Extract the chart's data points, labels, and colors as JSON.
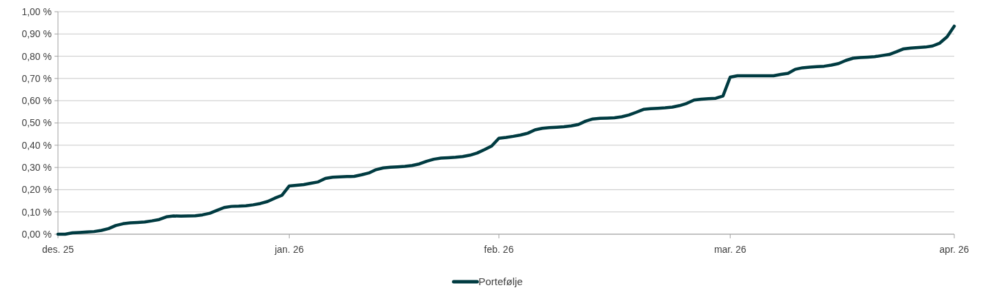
{
  "chart_data": {
    "type": "line",
    "categories": [
      "des. 25",
      null,
      null,
      null,
      null,
      null,
      null,
      null,
      null,
      null,
      null,
      null,
      null,
      null,
      null,
      null,
      null,
      null,
      null,
      null,
      null,
      null,
      null,
      null,
      null,
      null,
      null,
      null,
      null,
      null,
      null,
      null,
      "jan. 26",
      null,
      null,
      null,
      null,
      null,
      null,
      null,
      null,
      null,
      null,
      null,
      null,
      null,
      null,
      null,
      null,
      null,
      null,
      null,
      null,
      null,
      null,
      null,
      null,
      null,
      null,
      null,
      null,
      "feb. 26",
      null,
      null,
      null,
      null,
      null,
      null,
      null,
      null,
      null,
      null,
      null,
      null,
      null,
      null,
      null,
      null,
      null,
      null,
      null,
      null,
      null,
      null,
      null,
      null,
      null,
      null,
      null,
      null,
      null,
      null,
      null,
      "mar. 26",
      null,
      null,
      null,
      null,
      null,
      null,
      null,
      null,
      null,
      null,
      null,
      null,
      null,
      null,
      null,
      null,
      null,
      null,
      null,
      null,
      null,
      null,
      null,
      null,
      null,
      null,
      null,
      null,
      null,
      null,
      "apr. 26"
    ],
    "series": [
      {
        "name": "Portefølje",
        "color": "#003b41",
        "values": [
          0,
          0,
          0.006,
          0.008,
          0.01,
          0.012,
          0.017,
          0.025,
          0.039,
          0.047,
          0.051,
          0.053,
          0.055,
          0.06,
          0.066,
          0.078,
          0.082,
          0.081,
          0.082,
          0.083,
          0.087,
          0.094,
          0.107,
          0.12,
          0.125,
          0.126,
          0.128,
          0.132,
          0.138,
          0.147,
          0.162,
          0.175,
          0.217,
          0.22,
          0.223,
          0.229,
          0.235,
          0.251,
          0.256,
          0.258,
          0.259,
          0.26,
          0.267,
          0.275,
          0.29,
          0.298,
          0.301,
          0.303,
          0.305,
          0.309,
          0.316,
          0.328,
          0.337,
          0.342,
          0.344,
          0.346,
          0.349,
          0.355,
          0.365,
          0.38,
          0.396,
          0.431,
          0.435,
          0.44,
          0.446,
          0.454,
          0.469,
          0.476,
          0.479,
          0.481,
          0.483,
          0.487,
          0.493,
          0.508,
          0.518,
          0.521,
          0.522,
          0.523,
          0.528,
          0.536,
          0.548,
          0.561,
          0.564,
          0.566,
          0.568,
          0.571,
          0.578,
          0.588,
          0.603,
          0.607,
          0.609,
          0.611,
          0.621,
          0.706,
          0.712,
          0.712,
          0.712,
          0.712,
          0.712,
          0.712,
          0.718,
          0.723,
          0.741,
          0.748,
          0.751,
          0.753,
          0.755,
          0.76,
          0.767,
          0.781,
          0.791,
          0.794,
          0.796,
          0.798,
          0.803,
          0.808,
          0.82,
          0.833,
          0.837,
          0.839,
          0.841,
          0.846,
          0.859,
          0.887,
          0.935
        ]
      }
    ],
    "ylim": [
      0,
      1
    ],
    "yticks": [
      {
        "value": 0,
        "label": "0,00 %"
      },
      {
        "value": 0.1,
        "label": "0,10 %"
      },
      {
        "value": 0.2,
        "label": "0,20 %"
      },
      {
        "value": 0.3,
        "label": "0,30 %"
      },
      {
        "value": 0.4,
        "label": "0,40 %"
      },
      {
        "value": 0.5,
        "label": "0,50 %"
      },
      {
        "value": 0.6,
        "label": "0,60 %"
      },
      {
        "value": 0.7,
        "label": "0,70 %"
      },
      {
        "value": 0.8,
        "label": "0,80 %"
      },
      {
        "value": 0.9,
        "label": "0,90 %"
      },
      {
        "value": 1,
        "label": "1,00 %"
      }
    ],
    "grid": "y",
    "legend": "bottom",
    "marker": "none",
    "line_style": "solid"
  }
}
